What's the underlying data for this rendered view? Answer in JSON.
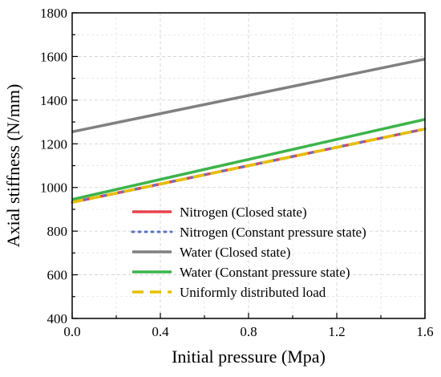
{
  "chart_data": {
    "type": "line",
    "xlabel": "Initial pressure (Mpa)",
    "ylabel": "Axial stiffness (N/mm)",
    "xlim": [
      0.0,
      1.6
    ],
    "ylim": [
      400,
      1800
    ],
    "xticks": [
      "0.0",
      "0.4",
      "0.8",
      "1.2",
      "1.6"
    ],
    "yticks": [
      "400",
      "600",
      "800",
      "1000",
      "1200",
      "1400",
      "1600",
      "1800"
    ],
    "grid": true,
    "legend_position": "bottom-center",
    "series": [
      {
        "name": "Nitrogen (Closed state)",
        "color": "#e8434f",
        "style": "solid",
        "x": [
          0.0,
          1.6
        ],
        "y": [
          932,
          1268
        ]
      },
      {
        "name": "Nitrogen (Constant pressure state)",
        "color": "#5b74c9",
        "style": "dotted",
        "x": [
          0.0,
          1.6
        ],
        "y": [
          932,
          1268
        ]
      },
      {
        "name": "Water (Closed state)",
        "color": "#808080",
        "style": "solid",
        "x": [
          0.0,
          1.6
        ],
        "y": [
          1255,
          1588
        ]
      },
      {
        "name": "Water (Constant pressure state)",
        "color": "#3cb44b",
        "style": "solid",
        "x": [
          0.0,
          1.6
        ],
        "y": [
          945,
          1312
        ]
      },
      {
        "name": "Uniformly distributed load",
        "color": "#e6c000",
        "style": "dashed",
        "x": [
          0.0,
          1.6
        ],
        "y": [
          932,
          1268
        ]
      }
    ]
  }
}
